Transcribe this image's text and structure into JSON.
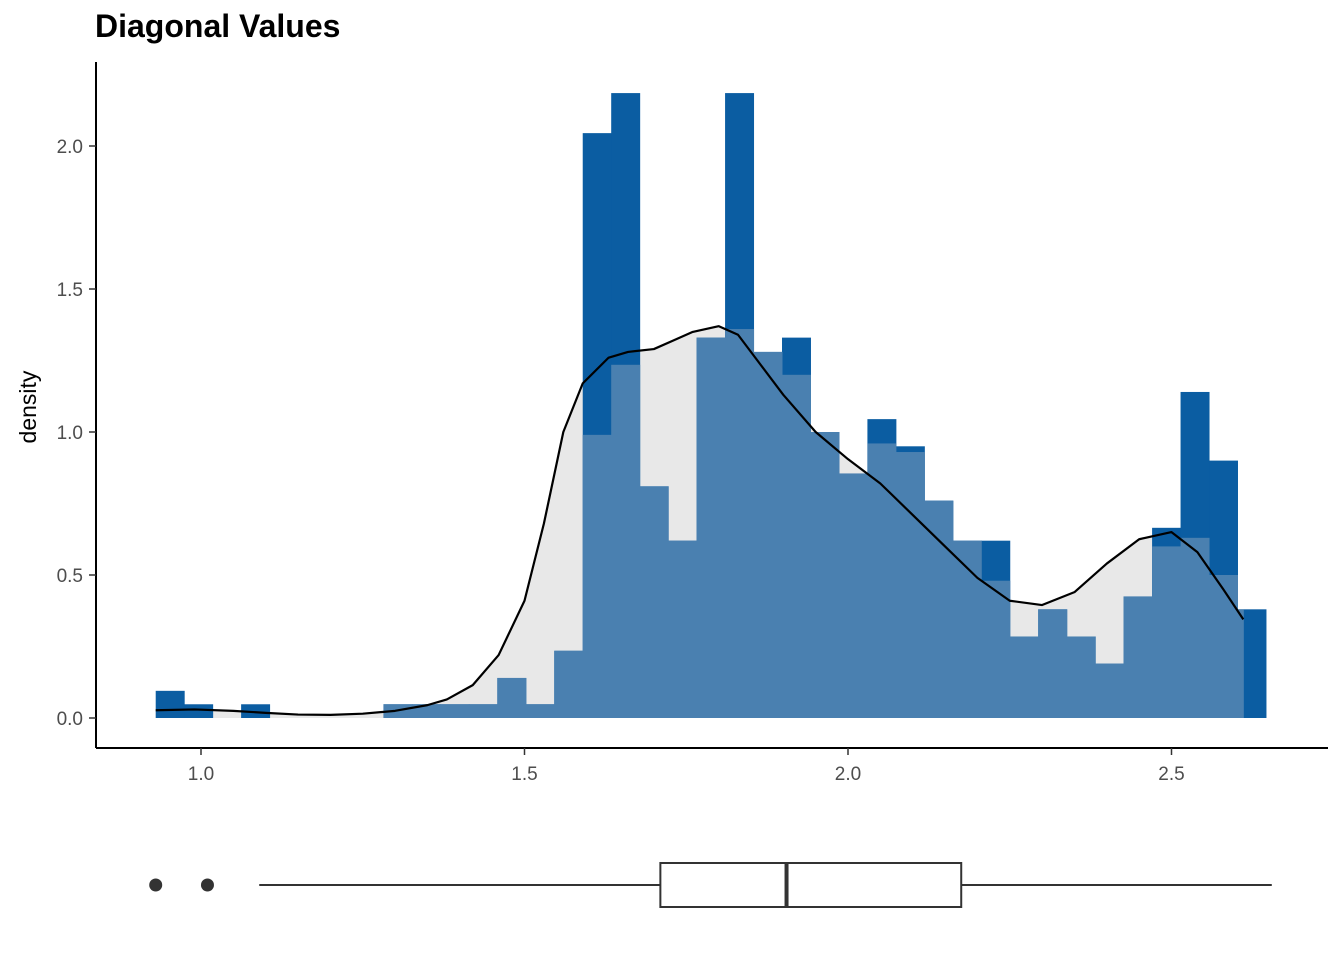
{
  "chart_data": {
    "type": "bar",
    "title": "Diagonal Values",
    "xlabel": "",
    "ylabel": "density",
    "xlim": [
      0.84,
      2.75
    ],
    "ylim": [
      -0.1,
      2.3
    ],
    "x_ticks": [
      1.0,
      1.5,
      2.0,
      2.5
    ],
    "x_tick_labels": [
      "1.0",
      "1.5",
      "2.0",
      "2.5"
    ],
    "y_ticks": [
      0.0,
      0.5,
      1.0,
      1.5,
      2.0
    ],
    "y_tick_labels": [
      "0.0",
      "0.5",
      "1.0",
      "1.5",
      "2.0"
    ],
    "grid": false,
    "colors": {
      "histogram": "#0B5DA2",
      "overlay_histogram": "#4A80B0",
      "density_area": "#E8E8E8",
      "density_line": "#000000",
      "boxplot": "#333333"
    },
    "series": [
      {
        "kind": "histogram",
        "bin_edges": [
          0.93,
          0.974,
          1.018,
          1.062,
          1.106,
          1.15,
          1.194,
          1.238,
          1.282,
          1.326,
          1.37,
          1.414,
          1.458,
          1.502,
          1.546,
          1.59,
          1.634,
          1.678,
          1.722,
          1.766,
          1.81,
          1.854,
          1.898,
          1.942,
          1.986,
          2.03,
          2.074,
          2.118,
          2.162,
          2.206,
          2.25,
          2.294,
          2.338,
          2.382,
          2.426,
          2.47,
          2.514,
          2.558,
          2.602,
          2.646
        ],
        "values": [
          0.095,
          0.048,
          0,
          0.048,
          0,
          0,
          0,
          0,
          0.048,
          0.048,
          0.048,
          0.048,
          0.14,
          0.048,
          0.235,
          2.045,
          2.185,
          0.81,
          0.62,
          1.33,
          2.185,
          1.28,
          1.33,
          1.0,
          0.855,
          1.045,
          0.95,
          0.76,
          0.62,
          0.62,
          0.285,
          0.38,
          0.285,
          0.19,
          0.425,
          0.665,
          1.14,
          0.9,
          0.38
        ]
      },
      {
        "kind": "histogram-overlay",
        "bin_edges": [
          1.282,
          1.326,
          1.37,
          1.414,
          1.458,
          1.502,
          1.546,
          1.59,
          1.634,
          1.678,
          1.722,
          1.766,
          1.81,
          1.854,
          1.898,
          1.942,
          1.986,
          2.03,
          2.074,
          2.118,
          2.162,
          2.206,
          2.25,
          2.294,
          2.338,
          2.382,
          2.426,
          2.47,
          2.514,
          2.558,
          2.602,
          2.611
        ],
        "values": [
          0.048,
          0.048,
          0.048,
          0.048,
          0.14,
          0.048,
          0.235,
          0.99,
          1.235,
          0.81,
          0.62,
          1.33,
          1.36,
          1.28,
          1.2,
          1.0,
          0.855,
          0.96,
          0.93,
          0.76,
          0.62,
          0.48,
          0.285,
          0.38,
          0.285,
          0.19,
          0.425,
          0.6,
          0.63,
          0.5,
          0.38
        ]
      },
      {
        "kind": "density",
        "x": [
          0.93,
          0.99,
          1.05,
          1.1,
          1.15,
          1.2,
          1.25,
          1.3,
          1.35,
          1.38,
          1.42,
          1.46,
          1.5,
          1.53,
          1.56,
          1.59,
          1.63,
          1.66,
          1.7,
          1.73,
          1.76,
          1.8,
          1.83,
          1.86,
          1.9,
          1.95,
          2.0,
          2.05,
          2.1,
          2.15,
          2.2,
          2.25,
          2.3,
          2.35,
          2.4,
          2.45,
          2.5,
          2.54,
          2.58,
          2.611
        ],
        "y": [
          0.027,
          0.03,
          0.025,
          0.018,
          0.012,
          0.011,
          0.015,
          0.025,
          0.045,
          0.065,
          0.115,
          0.22,
          0.41,
          0.68,
          1.0,
          1.17,
          1.26,
          1.28,
          1.29,
          1.32,
          1.35,
          1.37,
          1.34,
          1.25,
          1.13,
          1.0,
          0.905,
          0.82,
          0.71,
          0.6,
          0.49,
          0.41,
          0.395,
          0.44,
          0.54,
          0.625,
          0.65,
          0.58,
          0.45,
          0.345
        ]
      }
    ],
    "boxplot": {
      "whisker_low": 1.09,
      "q1": 1.71,
      "median": 1.905,
      "q3": 2.175,
      "whisker_high": 2.655,
      "outliers": [
        0.93,
        1.01
      ]
    }
  }
}
